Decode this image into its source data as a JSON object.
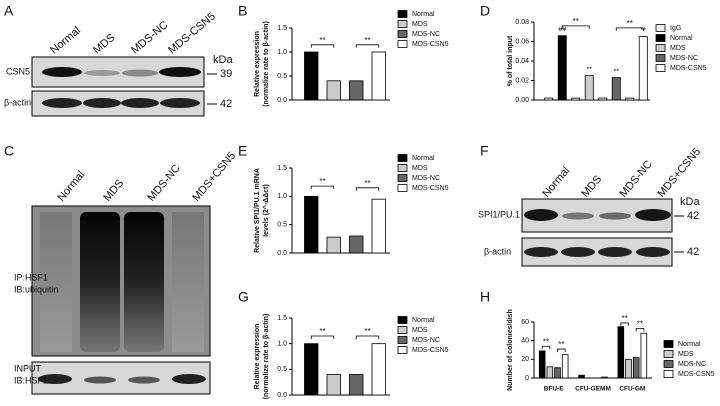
{
  "panel_labels": [
    "A",
    "B",
    "C",
    "D",
    "E",
    "F",
    "G",
    "H"
  ],
  "blot_a": {
    "lanes": [
      "Normal",
      "MDS",
      "MDS-NC",
      "MDS-CSN5"
    ],
    "rows": [
      "CSN5",
      "β-actin"
    ],
    "kda_label": "kDa",
    "kda": [
      39,
      42
    ]
  },
  "blot_c": {
    "lanes": [
      "Normal",
      "MDS",
      "MDS-NC",
      "MDS+CSN5"
    ],
    "main_label": [
      "IP:HSF1",
      "IB:ubiquitin"
    ],
    "input_label": [
      "INPUT",
      "IB:HSF1"
    ]
  },
  "blot_f": {
    "lanes": [
      "Normal",
      "MDS",
      "MDS-NC",
      "MDS+CSN5"
    ],
    "rows": [
      "SPI1/PU.1",
      "β-actin"
    ],
    "kda_label": "kDa",
    "kda": [
      42,
      42
    ]
  },
  "chart_data": [
    {
      "type": "bar",
      "ylabel": [
        "Relative expression",
        "(normalize rate to β-actin)"
      ],
      "values": [
        1.0,
        0.4,
        0.4,
        1.0
      ],
      "bar_colors": [
        "#000000",
        "#cccccc",
        "#666666",
        "#ffffff"
      ],
      "legend": [
        {
          "name": "Normal",
          "color": "#000000"
        },
        {
          "name": "MDS",
          "color": "#cccccc"
        },
        {
          "name": "MDS-NC",
          "color": "#666666"
        },
        {
          "name": "MDS-CSN5",
          "color": "#ffffff"
        }
      ],
      "ylim": [
        0,
        1.5
      ],
      "yticks": [
        {
          "value": 0,
          "label": "0.0"
        },
        0.5,
        {
          "value": 1,
          "label": "1.0"
        },
        1.5
      ],
      "annotations": [
        "**",
        "**"
      ]
    },
    {
      "type": "bar",
      "ylabel": [
        "% of total input"
      ],
      "values": [
        0.002,
        0.066,
        0.002,
        0.025,
        0.002,
        0.023,
        0.002,
        0.065
      ],
      "bar_colors": [
        "#eeeeee",
        "#000000",
        "#eeeeee",
        "#cccccc",
        "#eeeeee",
        "#666666",
        "#eeeeee",
        "#ffffff"
      ],
      "legend": [
        {
          "name": "IgG",
          "color": "#eeeeee"
        },
        {
          "name": "Normal",
          "color": "#000000"
        },
        {
          "name": "MDS",
          "color": "#cccccc"
        },
        {
          "name": "MDS-NC",
          "color": "#666666"
        },
        {
          "name": "MDS-CSN5",
          "color": "#ffffff"
        }
      ],
      "ylim": [
        0,
        0.08
      ],
      "yticks": [
        {
          "value": 0,
          "label": "0.00"
        },
        {
          "value": 0.02,
          "label": "0.02"
        },
        {
          "value": 0.04,
          "label": "0.04"
        },
        {
          "value": 0.06,
          "label": "0.06"
        },
        {
          "value": 0.08,
          "label": "0.08"
        }
      ],
      "annotations": [
        "**",
        "**",
        "##",
        "**",
        "**",
        "**"
      ]
    },
    {
      "type": "bar",
      "ylabel": [
        "Relative SPI1/PU.1 mRNA",
        "levels (2^-ΔΔct)"
      ],
      "values": [
        1.0,
        0.28,
        0.3,
        0.95
      ],
      "bar_colors": [
        "#000000",
        "#cccccc",
        "#666666",
        "#ffffff"
      ],
      "legend": [
        {
          "name": "Normal",
          "color": "#000000"
        },
        {
          "name": "MDS",
          "color": "#cccccc"
        },
        {
          "name": "MDS-NC",
          "color": "#666666"
        },
        {
          "name": "MDS-CSN5",
          "color": "#ffffff"
        }
      ],
      "ylim": [
        0,
        1.5
      ],
      "yticks": [
        {
          "value": 0,
          "label": "0.0"
        },
        0.5,
        {
          "value": 1,
          "label": "1.0"
        },
        1.5
      ],
      "annotations": [
        "**",
        "**"
      ]
    },
    {
      "type": "bar",
      "ylabel": [
        "Relative expression",
        "(normalize rate to β-actin)"
      ],
      "values": [
        1.0,
        0.4,
        0.4,
        1.0
      ],
      "bar_colors": [
        "#000000",
        "#cccccc",
        "#666666",
        "#ffffff"
      ],
      "legend": [
        {
          "name": "Normal",
          "color": "#000000"
        },
        {
          "name": "MDS",
          "color": "#cccccc"
        },
        {
          "name": "MDS-NC",
          "color": "#666666"
        },
        {
          "name": "MDS-CSN5",
          "color": "#ffffff"
        }
      ],
      "ylim": [
        0,
        1.5
      ],
      "yticks": [
        {
          "value": 0,
          "label": "0.0"
        },
        0.5,
        {
          "value": 1,
          "label": "1.0"
        },
        1.5
      ],
      "annotations": [
        "**",
        "**"
      ]
    },
    {
      "type": "grouped_bar",
      "ylabel": [
        "Number of colonies/dish"
      ],
      "categories": [
        "BFU-E",
        "CFU-GEMM",
        "CFU-GM"
      ],
      "series": [
        {
          "name": "Normal",
          "color": "#000000",
          "values": [
            29,
            3,
            55
          ]
        },
        {
          "name": "MDS",
          "color": "#cccccc",
          "values": [
            12,
            0,
            20
          ]
        },
        {
          "name": "MDS-NC",
          "color": "#666666",
          "values": [
            11,
            0,
            22
          ]
        },
        {
          "name": "MDS-CSN5",
          "color": "#ffffff",
          "values": [
            25,
            1,
            48
          ]
        }
      ],
      "ylim": [
        0,
        60
      ],
      "yticks": [
        0,
        20,
        40,
        60
      ],
      "annotations": [
        "**",
        "**",
        "**",
        "**"
      ]
    }
  ]
}
